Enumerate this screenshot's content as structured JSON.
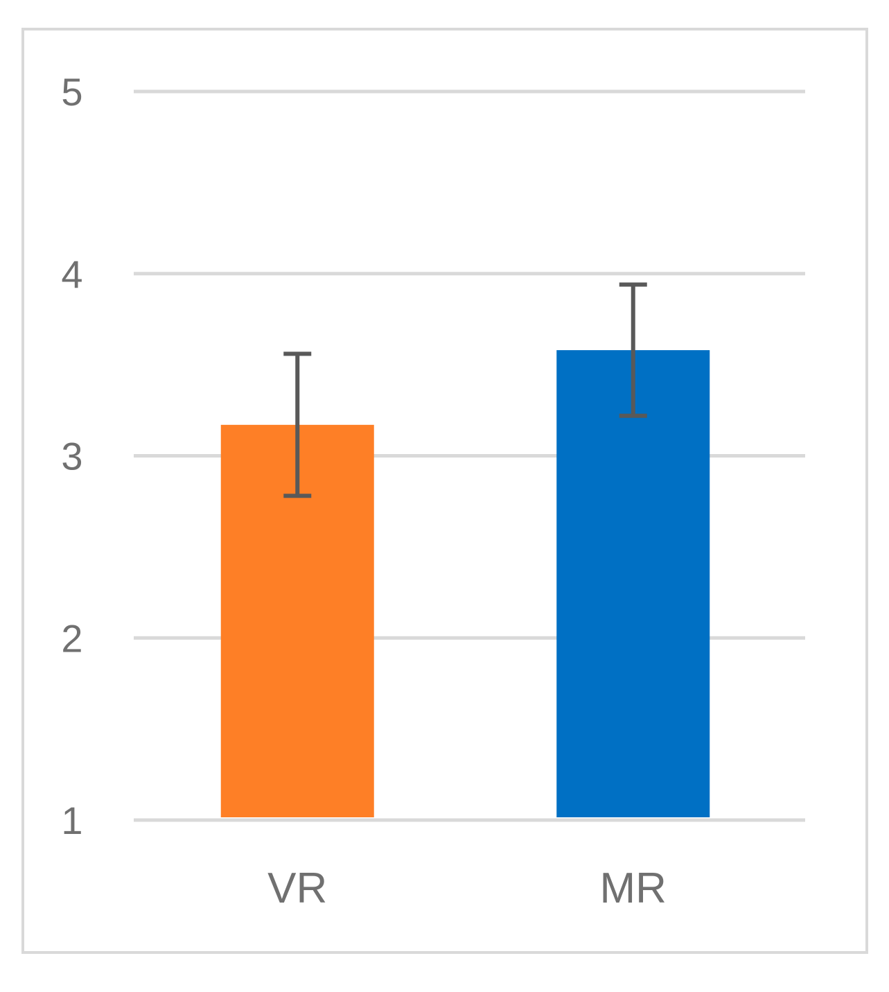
{
  "chart_data": {
    "type": "bar",
    "title": "",
    "xlabel": "",
    "ylabel": "",
    "categories": [
      "VR",
      "MR"
    ],
    "values": [
      3.17,
      3.58
    ],
    "error": [
      0.39,
      0.36
    ],
    "ylim": [
      1,
      5
    ],
    "yticks": [
      "1",
      "2",
      "3",
      "4",
      "5"
    ],
    "grid": true,
    "legend": "none",
    "colors": [
      "#FE7F26",
      "#0070C4"
    ],
    "error_color": "#595959",
    "grid_color": "#d9d9d9"
  }
}
